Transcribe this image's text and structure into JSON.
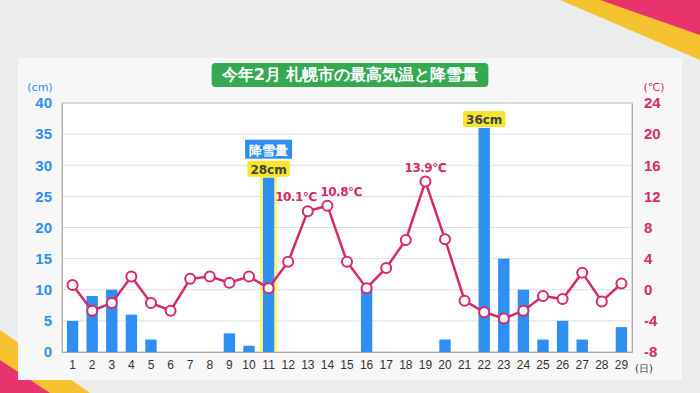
{
  "chart_data": {
    "type": "bar",
    "title": "今年2月 札幌市の最高気温と降雪量",
    "categories": [
      "1",
      "2",
      "3",
      "4",
      "5",
      "6",
      "7",
      "8",
      "9",
      "10",
      "11",
      "12",
      "13",
      "14",
      "15",
      "16",
      "17",
      "18",
      "19",
      "20",
      "21",
      "22",
      "23",
      "24",
      "25",
      "26",
      "27",
      "28",
      "29"
    ],
    "x_label": "(日)",
    "y_label": "(cm)",
    "y2_label": "(℃)",
    "series": [
      {
        "name": "降雪量",
        "type": "bar",
        "color": "#2e8ff0",
        "values": [
          5,
          9,
          10,
          6,
          2,
          0,
          0,
          0,
          3,
          1,
          28,
          0,
          0,
          0,
          0,
          10,
          0,
          0,
          0,
          2,
          0,
          36,
          15,
          10,
          2,
          5,
          2,
          0,
          4
        ]
      },
      {
        "type": "line",
        "axis": "y2",
        "color": "#d42a6a",
        "marker": "circle",
        "values": [
          0.6,
          -2.7,
          -1.7,
          1.7,
          -1.7,
          -2.7,
          1.4,
          1.7,
          0.9,
          1.7,
          0.2,
          3.6,
          10.1,
          10.8,
          3.6,
          0.2,
          2.8,
          6.4,
          13.9,
          6.5,
          -1.4,
          -2.9,
          -3.7,
          -2.7,
          -0.8,
          -1.2,
          2.2,
          -1.5,
          0.8
        ]
      }
    ],
    "ylim": [
      0,
      40
    ],
    "yticks": [
      0,
      5,
      10,
      15,
      20,
      25,
      30,
      35,
      40
    ],
    "y2lim": [
      -8,
      24
    ],
    "y2ticks": [
      -8,
      -4,
      0,
      4,
      8,
      12,
      16,
      20,
      24
    ],
    "grid": true,
    "annotations": [
      {
        "text": "28cm",
        "category": "11",
        "series": 0
      },
      {
        "text": "36cm",
        "category": "22",
        "series": 0
      },
      {
        "text": "10.1℃",
        "category": "13",
        "series": 1
      },
      {
        "text": "10.8℃",
        "category": "14",
        "series": 1
      },
      {
        "text": "13.9℃",
        "category": "19",
        "series": 1
      }
    ]
  }
}
